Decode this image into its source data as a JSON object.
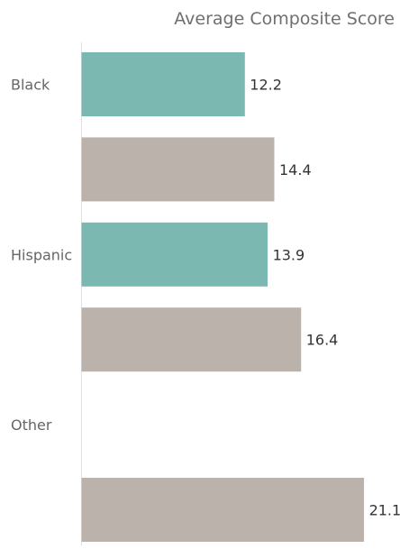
{
  "chart_data": {
    "type": "bar",
    "orientation": "horizontal",
    "title": "Average Composite Score",
    "category_labels": [
      "Black",
      "Hispanic",
      "Other"
    ],
    "bars": [
      {
        "category": "Black",
        "value": 12.2,
        "color": "#7bb8b1"
      },
      {
        "category": "Black",
        "value": 14.4,
        "color": "#bcb2ac"
      },
      {
        "category": "Hispanic",
        "value": 13.9,
        "color": "#7bb8b1"
      },
      {
        "category": "Hispanic",
        "value": 16.4,
        "color": "#bcb2ac"
      },
      {
        "category": "Other",
        "value": null,
        "color": "#7bb8b1"
      },
      {
        "category": "Other",
        "value": 21.1,
        "color": "#bcb2ac"
      }
    ],
    "xlim": [
      0,
      21.6
    ],
    "grid": false,
    "legend": "none"
  }
}
